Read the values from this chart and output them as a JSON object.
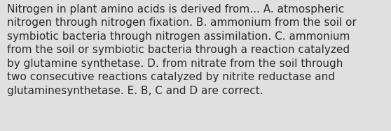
{
  "lines": [
    "Nitrogen in plant amino acids is derived from... A. atmospheric",
    "nitrogen through nitrogen fixation. B. ammonium from the soil or",
    "symbiotic bacteria through nitrogen assimilation. C. ammonium",
    "from the soil or symbiotic bacteria through a reaction catalyzed",
    "by glutamine synthetase. D. from nitrate from the soil through",
    "two consecutive reactions catalyzed by nitrite reductase and",
    "glutaminesynthetase. E. B, C and D are correct."
  ],
  "background_color": "#e0e0e0",
  "text_color": "#2b2b2b",
  "font_size": 11.0,
  "fig_width": 5.58,
  "fig_height": 1.88,
  "dpi": 100
}
